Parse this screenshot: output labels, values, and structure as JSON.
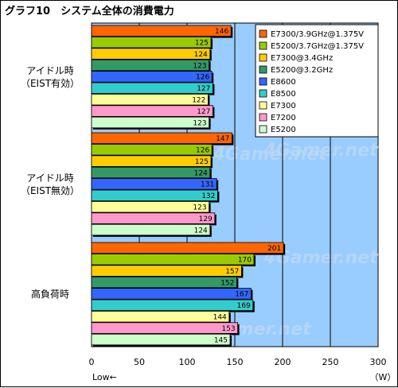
{
  "chart_data": {
    "type": "bar",
    "orientation": "horizontal",
    "title": "グラフ10　システム全体の消費電力",
    "categories": [
      "アイドル時\n（EIST有効）",
      "アイドル時\n（EIST無効）",
      "高負荷時"
    ],
    "series": [
      {
        "name": "E7300/3.9GHz@1.375V",
        "color": "#ff6600",
        "values": [
          146,
          147,
          201
        ]
      },
      {
        "name": "E5200/3.7GHz@1.375V",
        "color": "#99cc00",
        "values": [
          125,
          126,
          170
        ]
      },
      {
        "name": "E7300@3.4GHz",
        "color": "#ffcc00",
        "values": [
          124,
          125,
          157
        ]
      },
      {
        "name": "E5200@3.2GHz",
        "color": "#339966",
        "values": [
          123,
          124,
          152
        ]
      },
      {
        "name": "E8600",
        "color": "#3366ff",
        "values": [
          126,
          131,
          167
        ]
      },
      {
        "name": "E8500",
        "color": "#33cccc",
        "values": [
          127,
          132,
          169
        ]
      },
      {
        "name": "E7300",
        "color": "#ffff99",
        "values": [
          122,
          123,
          144
        ]
      },
      {
        "name": "E7200",
        "color": "#ff99cc",
        "values": [
          127,
          129,
          153
        ]
      },
      {
        "name": "E5200",
        "color": "#ccffcc",
        "values": [
          123,
          124,
          145
        ]
      }
    ],
    "xlim": [
      0,
      300
    ],
    "xticks": [
      0,
      50,
      100,
      150,
      200,
      250,
      300
    ],
    "xlabel_left": "Low←",
    "xlabel_unit": "（W）",
    "watermark": "4Gamer.net",
    "grid": true,
    "legend_position": "top-right",
    "plot_background": "#99ccff"
  }
}
